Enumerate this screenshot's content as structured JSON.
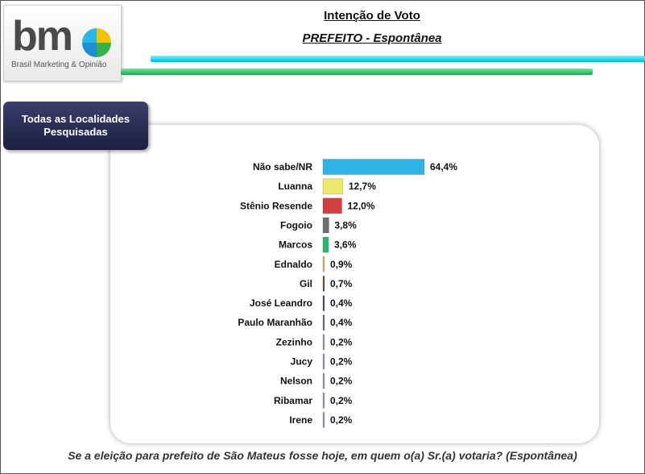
{
  "logo": {
    "text": "bm",
    "tagline": "Brasil Marketing & Opinião"
  },
  "header": {
    "title": "Intenção de Voto",
    "subtitle": "PREFEITO - Espontânea"
  },
  "tag_label": "Todas as Localidades Pesquisadas",
  "question": "Se a eleição para prefeito de São Mateus fosse hoje, em quem o(a) Sr.(a) votaria? (Espontânea)",
  "chart_data": {
    "type": "bar",
    "orientation": "horizontal",
    "categories": [
      "Não sabe/NR",
      "Luanna",
      "Stênio Resende",
      "Fogoio",
      "Marcos",
      "Ednaldo",
      "Gil",
      "José Leandro",
      "Paulo Maranhão",
      "Zezinho",
      "Jucy",
      "Nelson",
      "Ribamar",
      "Irene"
    ],
    "values": [
      64.4,
      12.7,
      12.0,
      3.8,
      3.6,
      0.9,
      0.7,
      0.4,
      0.4,
      0.2,
      0.2,
      0.2,
      0.2,
      0.2
    ],
    "value_labels": [
      "64,4%",
      "12,7%",
      "12,0%",
      "3,8%",
      "3,6%",
      "0,9%",
      "0,7%",
      "0,4%",
      "0,4%",
      "0,2%",
      "0,2%",
      "0,2%",
      "0,2%",
      "0,2%"
    ],
    "colors": [
      "#2fb3e6",
      "#ece86a",
      "#d23f3f",
      "#707070",
      "#2cb873",
      "#d6b86a",
      "#7a4b3a",
      "#4f4f78",
      "#6a6a9a",
      "#9a9ab8",
      "#9a9ab8",
      "#9a9ab8",
      "#9a9ab8",
      "#9a9ab8"
    ],
    "xlim": [
      0,
      100
    ],
    "grid": false,
    "legend": "none"
  }
}
